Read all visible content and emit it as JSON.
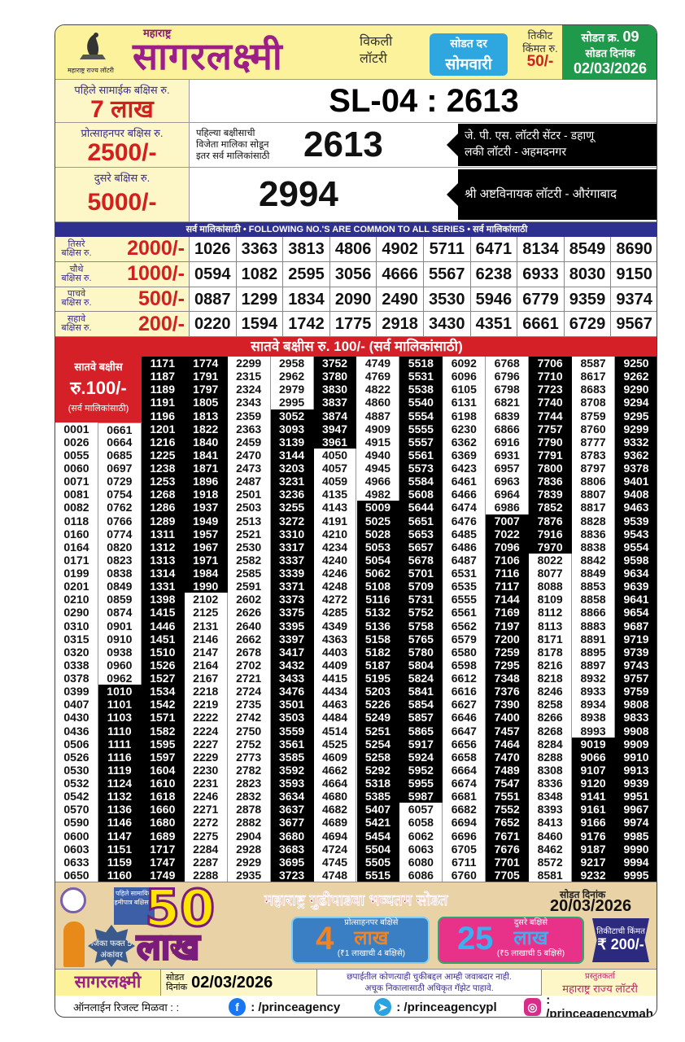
{
  "header": {
    "logo_caption": "महाराष्ट्र राज्य लॉटरी",
    "brand_sub": "महाराष्ट्र",
    "brand": "सागरलक्ष्मी",
    "weekly_1": "विकली",
    "weekly_2": "लॉटरी",
    "draw_day_label": "सोडत दर",
    "draw_day": "सोमवारी",
    "ticket_price_label_1": "तिकीट",
    "ticket_price_label_2": "किंमत रु.",
    "ticket_price": "50/-",
    "draw_no_label": "सोडत क्र.",
    "draw_no": "09",
    "draw_date_label": "सोडत दिनांक",
    "draw_date": "02/03/2026"
  },
  "first_prize": {
    "label": "पहिले सामाईक बक्षिस रु.",
    "amount": "7 लाख",
    "result": "SL-04 : 2613"
  },
  "incentive_prize": {
    "label": "प्रोत्साहनपर बक्षिस रु.",
    "amount": "2500/-",
    "note": [
      "पहिल्या बक्षीसाची",
      "विजेता मालिका सोडून",
      "इतर सर्व मालिकांसाठी"
    ],
    "number": "2613",
    "agents": [
      "जे. पी. एस.  लॉटरी  सेंटर -  डहाणू",
      "लकी लॉटरी - अहमदनगर"
    ]
  },
  "second_prize": {
    "label": "दुसरे बक्षिस रु.",
    "amount": "5000/-",
    "number": "2994",
    "agents": [
      "श्री अष्टविनायक लॉटरी - औरंगाबाद"
    ]
  },
  "common_band": "सर्व मालिकांसाठी  •  FOLLOWING NO.'S ARE COMMON TO ALL SERIES  •  सर्व मालिकांसाठी",
  "prize_rows": [
    {
      "label_1": "तिसरे",
      "label_2": "बक्षिस रु.",
      "amount": "2000/-",
      "numbers": [
        "1026",
        "3363",
        "3813",
        "4806",
        "4902",
        "5711",
        "6471",
        "8134",
        "8549",
        "8690"
      ]
    },
    {
      "label_1": "चौथे",
      "label_2": "बक्षिस रु.",
      "amount": "1000/-",
      "numbers": [
        "0594",
        "1082",
        "2595",
        "3056",
        "4666",
        "5567",
        "6238",
        "6933",
        "8030",
        "9150"
      ]
    },
    {
      "label_1": "पाचवे",
      "label_2": "बक्षिस रु.",
      "amount": "500/-",
      "numbers": [
        "0887",
        "1299",
        "1834",
        "2090",
        "2490",
        "3530",
        "5946",
        "6779",
        "9359",
        "9374"
      ]
    },
    {
      "label_1": "सहावे",
      "label_2": "बक्षिस रु.",
      "amount": "200/-",
      "numbers": [
        "0220",
        "1594",
        "1742",
        "1775",
        "2918",
        "3430",
        "4351",
        "6661",
        "6729",
        "9567"
      ]
    }
  ],
  "seventh_prize": {
    "band": "सातवे बक्षीस रु. 100/-  (सर्व मालिकांसाठी)",
    "label_1": "सातवे बक्षीस",
    "label_2": "रु.100/-",
    "label_3": "(सर्व मालिकांसाठी)",
    "columns": [
      [
        "0001",
        "0026",
        "0055",
        "0060",
        "0071",
        "0081",
        "0082",
        "0118",
        "0160",
        "0164",
        "0171",
        "0199",
        "0201",
        "0210",
        "0290",
        "0310",
        "0315",
        "0320",
        "0338",
        "0378",
        "0399",
        "0407",
        "0430",
        "0436",
        "0506",
        "0526",
        "0530",
        "0532",
        "0542",
        "0570",
        "0590",
        "0600",
        "0603",
        "0633",
        "0650"
      ],
      [
        "0661",
        "0664",
        "0685",
        "0697",
        "0729",
        "0754",
        "0762",
        "0766",
        "0774",
        "0820",
        "0823",
        "0838",
        "0849",
        "0859",
        "0874",
        "0901",
        "0910",
        "0938",
        "0960",
        "0962",
        "1010",
        "1101",
        "1103",
        "1110",
        "1111",
        "1116",
        "1119",
        "1124",
        "1132",
        "1136",
        "1146",
        "1147",
        "1151",
        "1159",
        "1160"
      ],
      [
        "1171",
        "1187",
        "1189",
        "1191",
        "1196",
        "1201",
        "1216",
        "1225",
        "1238",
        "1253",
        "1268",
        "1286",
        "1289",
        "1311",
        "1312",
        "1313",
        "1314",
        "1331",
        "1398",
        "1415",
        "1446",
        "1451",
        "1510",
        "1526",
        "1527",
        "1534",
        "1542",
        "1571",
        "1582",
        "1595",
        "1597",
        "1604",
        "1610",
        "1618",
        "1660",
        "1680",
        "1689",
        "1717",
        "1747",
        "1749"
      ],
      [
        "1774",
        "1791",
        "1797",
        "1805",
        "1813",
        "1822",
        "1840",
        "1841",
        "1871",
        "1896",
        "1918",
        "1937",
        "1949",
        "1957",
        "1967",
        "1971",
        "1984",
        "1990",
        "2102",
        "2125",
        "2131",
        "2146",
        "2147",
        "2164",
        "2167",
        "2218",
        "2219",
        "2222",
        "2224",
        "2227",
        "2229",
        "2230",
        "2231",
        "2246",
        "2271",
        "2272",
        "2275",
        "2284",
        "2287",
        "2288"
      ],
      [
        "2299",
        "2315",
        "2324",
        "2343",
        "2359",
        "2363",
        "2459",
        "2470",
        "2473",
        "2487",
        "2501",
        "2503",
        "2513",
        "2521",
        "2530",
        "2582",
        "2585",
        "2591",
        "2602",
        "2626",
        "2640",
        "2662",
        "2678",
        "2702",
        "2721",
        "2724",
        "2735",
        "2742",
        "2750",
        "2752",
        "2773",
        "2782",
        "2823",
        "2832",
        "2878",
        "2882",
        "2904",
        "2928",
        "2929",
        "2935"
      ],
      [
        "2958",
        "2962",
        "2979",
        "2995",
        "3052",
        "3093",
        "3139",
        "3144",
        "3203",
        "3231",
        "3236",
        "3255",
        "3272",
        "3310",
        "3317",
        "3337",
        "3339",
        "3371",
        "3373",
        "3375",
        "3395",
        "3397",
        "3417",
        "3432",
        "3433",
        "3476",
        "3501",
        "3503",
        "3559",
        "3561",
        "3585",
        "3592",
        "3593",
        "3634",
        "3637",
        "3677",
        "3680",
        "3683",
        "3695",
        "3723"
      ],
      [
        "3752",
        "3780",
        "3830",
        "3837",
        "3874",
        "3947",
        "3961",
        "4050",
        "4057",
        "4059",
        "4135",
        "4143",
        "4191",
        "4210",
        "4234",
        "4240",
        "4246",
        "4248",
        "4272",
        "4285",
        "4349",
        "4363",
        "4403",
        "4409",
        "4415",
        "4434",
        "4463",
        "4484",
        "4514",
        "4525",
        "4609",
        "4662",
        "4664",
        "4680",
        "4682",
        "4689",
        "4694",
        "4724",
        "4745",
        "4748"
      ],
      [
        "4749",
        "4769",
        "4822",
        "4860",
        "4887",
        "4909",
        "4915",
        "4940",
        "4945",
        "4966",
        "4982",
        "5009",
        "5025",
        "5028",
        "5053",
        "5054",
        "5062",
        "5108",
        "5116",
        "5132",
        "5136",
        "5158",
        "5182",
        "5187",
        "5195",
        "5203",
        "5226",
        "5249",
        "5251",
        "5254",
        "5258",
        "5292",
        "5318",
        "5385",
        "5407",
        "5421",
        "5454",
        "5504",
        "5505",
        "5515"
      ],
      [
        "5518",
        "5531",
        "5538",
        "5540",
        "5554",
        "5555",
        "5557",
        "5561",
        "5573",
        "5584",
        "5608",
        "5644",
        "5651",
        "5653",
        "5657",
        "5678",
        "5701",
        "5709",
        "5731",
        "5752",
        "5758",
        "5765",
        "5780",
        "5804",
        "5824",
        "5841",
        "5854",
        "5857",
        "5865",
        "5917",
        "5924",
        "5952",
        "5955",
        "5987",
        "6057",
        "6058",
        "6062",
        "6063",
        "6080",
        "6086"
      ],
      [
        "6092",
        "6096",
        "6105",
        "6131",
        "6198",
        "6230",
        "6362",
        "6369",
        "6423",
        "6461",
        "6466",
        "6474",
        "6476",
        "6485",
        "6486",
        "6487",
        "6531",
        "6535",
        "6555",
        "6561",
        "6562",
        "6579",
        "6580",
        "6598",
        "6612",
        "6616",
        "6627",
        "6646",
        "6647",
        "6656",
        "6658",
        "6664",
        "6674",
        "6681",
        "6682",
        "6694",
        "6696",
        "6705",
        "6711",
        "6760"
      ],
      [
        "6768",
        "6796",
        "6798",
        "6821",
        "6839",
        "6866",
        "6916",
        "6931",
        "6957",
        "6963",
        "6964",
        "6986",
        "7007",
        "7022",
        "7096",
        "7106",
        "7116",
        "7117",
        "7144",
        "7169",
        "7197",
        "7200",
        "7259",
        "7295",
        "7348",
        "7376",
        "7390",
        "7400",
        "7457",
        "7464",
        "7470",
        "7489",
        "7547",
        "7551",
        "7552",
        "7652",
        "7671",
        "7676",
        "7701",
        "7705"
      ],
      [
        "7706",
        "7710",
        "7723",
        "7740",
        "7744",
        "7757",
        "7790",
        "7791",
        "7800",
        "7836",
        "7839",
        "7852",
        "7876",
        "7916",
        "7970",
        "8022",
        "8077",
        "8088",
        "8109",
        "8112",
        "8113",
        "8171",
        "8178",
        "8216",
        "8218",
        "8246",
        "8258",
        "8266",
        "8268",
        "8284",
        "8288",
        "8308",
        "8336",
        "8348",
        "8393",
        "8413",
        "8460",
        "8462",
        "8572",
        "8581"
      ],
      [
        "8587",
        "8617",
        "8683",
        "8708",
        "8759",
        "8760",
        "8777",
        "8783",
        "8797",
        "8806",
        "8807",
        "8817",
        "8828",
        "8836",
        "8838",
        "8842",
        "8849",
        "8853",
        "8858",
        "8866",
        "8883",
        "8891",
        "8895",
        "8897",
        "8932",
        "8933",
        "8934",
        "8938",
        "8993",
        "9019",
        "9066",
        "9107",
        "9120",
        "9141",
        "9161",
        "9166",
        "9176",
        "9187",
        "9217",
        "9232"
      ],
      [
        "9250",
        "9262",
        "9290",
        "9294",
        "9295",
        "9299",
        "9332",
        "9362",
        "9378",
        "9401",
        "9408",
        "9463",
        "9539",
        "9543",
        "9554",
        "9598",
        "9634",
        "9639",
        "9641",
        "9654",
        "9687",
        "9719",
        "9739",
        "9743",
        "9757",
        "9759",
        "9808",
        "9833",
        "9908",
        "9909",
        "9910",
        "9913",
        "9939",
        "9951",
        "9967",
        "9974",
        "9985",
        "9990",
        "9994",
        "9995"
      ]
    ]
  },
  "promo": {
    "badge": "पहिले सामायिक हमीपात्र बक्षिस ₹",
    "win_note": "जिंका फक्त 5 अंकांवर",
    "headline_num": "50",
    "headline_unit": "लाख",
    "festival": "महाराष्ट्र गुढीपाडवा भव्यतम सोडत",
    "date_label": "सोडत दिनांक",
    "date": "20/03/2026",
    "incentive": {
      "label": "प्रोत्साहनपर बक्षिसे",
      "num": "4",
      "unit": "लाख",
      "sub": "(₹1 लाखाची 4 बक्षिसे)"
    },
    "second": {
      "label": "दुसरे बक्षिसे",
      "num": "25",
      "unit": "लाख",
      "sub": "(₹5 लाखाची 5 बक्षिसे)"
    },
    "ticket_label": "तिकीटाची किंमत",
    "ticket_price": "₹ 200/-"
  },
  "footer": {
    "brand": "सागरलक्ष्मी",
    "date_label_1": "सोडत",
    "date_label_2": "दिनांक",
    "date": "02/03/2026",
    "disclaimer_1": "छपाईतील कोणत्याही चुकीबद्दल आम्ही जवाबदार नाही.",
    "disclaimer_2": "अचूक निकालासाठी अधिकृत गॅझेट पाहावे.",
    "presenter_label": "प्रस्तुतकर्ता",
    "presenter": "महाराष्ट्र राज्य लॉटरी",
    "online_label": "ऑनलाईन रिजल्ट मिळवा :  :",
    "facebook": ": /princeagency",
    "telegram": ": /princeagencypl",
    "instagram": ": /princeagencymah"
  },
  "colors": {
    "brand": "#9b1f86",
    "prize_red": "#d62027",
    "band_blue": "#2e2f8e",
    "green": "#1f9a4a",
    "header_yellow": "#fdf29c"
  }
}
